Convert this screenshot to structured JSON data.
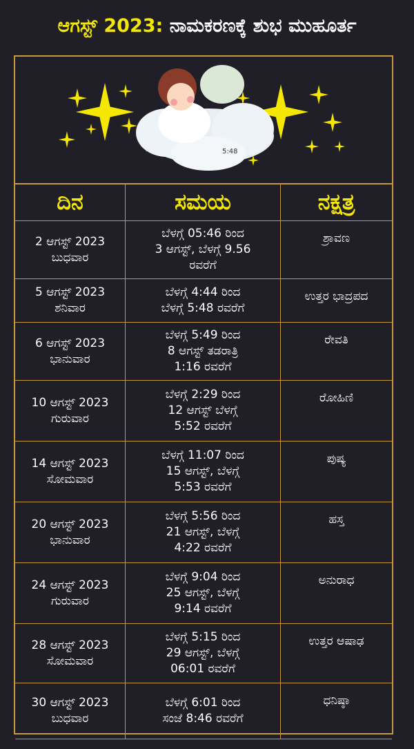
{
  "title": {
    "highlight": "ಆಗಸ್ಟ್ 2023:",
    "rest": " ನಾಮಕರಣಕ್ಕೆ ಶುಭ ಮುಹೂರ್ತ"
  },
  "illustration": {
    "caption": "5:48"
  },
  "table": {
    "headers": [
      "ದಿನ",
      "ಸಮಯ",
      "ನಕ್ಷತ್ರ"
    ],
    "rows": [
      {
        "date": "2 ಆಗಸ್ಟ್ 2023",
        "day": "ಬುಧವಾರ",
        "time": [
          "ಬೆಳಗ್ಗೆ 05:46 ರಿಂದ",
          "3 ಆಗಸ್ಟ್, ಬೆಳಗ್ಗೆ 9.56",
          "ರವರೆಗೆ"
        ],
        "nakshatra": "ಶ್ರಾವಣ"
      },
      {
        "date": "5 ಆಗಸ್ಟ್ 2023",
        "day": "ಶನಿವಾರ",
        "time": [
          "ಬೆಳಗ್ಗೆ 4:44 ರಿಂದ",
          "ಬೆಳಗ್ಗೆ 5:48 ರವರೆಗೆ"
        ],
        "nakshatra": "ಉತ್ತರ ಭಾದ್ರಪದ"
      },
      {
        "date": "6 ಆಗಸ್ಟ್ 2023",
        "day": "ಭಾನುವಾರ",
        "time": [
          "ಬೆಳಗ್ಗೆ 5:49 ರಿಂದ",
          "8 ಆಗಸ್ಟ್ ತಡರಾತ್ರಿ",
          "1:16 ರವರೆಗೆ"
        ],
        "nakshatra": "ರೇವತಿ"
      },
      {
        "date": "10 ಆಗಸ್ಟ್ 2023",
        "day": "ಗುರುವಾರ",
        "time": [
          "ಬೆಳಗ್ಗೆ 2:29 ರಿಂದ",
          "12 ಆಗಸ್ಟ್ ಬೆಳಗ್ಗೆ",
          "5:52 ರವರೆಗೆ"
        ],
        "nakshatra": "ರೋಹಿಣಿ"
      },
      {
        "date": "14 ಆಗಸ್ಟ್ 2023",
        "day": "ಸೋಮವಾರ",
        "time": [
          "ಬೆಳಗ್ಗೆ 11:07 ರಿಂದ",
          "15 ಆಗಸ್ಟ್, ಬೆಳಗ್ಗೆ",
          "5:53 ರವರೆಗೆ"
        ],
        "nakshatra": "ಪುಷ್ಯ"
      },
      {
        "date": "20 ಆಗಸ್ಟ್ 2023",
        "day": "ಭಾನುವಾರ",
        "time": [
          "ಬೆಳಗ್ಗೆ 5:56 ರಿಂದ",
          "21 ಆಗಸ್ಟ್, ಬೆಳಗ್ಗೆ",
          "4:22 ರವರೆಗೆ"
        ],
        "nakshatra": "ಹಸ್ತ"
      },
      {
        "date": "24 ಆಗಸ್ಟ್ 2023",
        "day": "ಗುರುವಾರ",
        "time": [
          "ಬೆಳಗ್ಗೆ 9:04 ರಿಂದ",
          "25 ಆಗಸ್ಟ್, ಬೆಳಗ್ಗೆ",
          "9:14 ರವರೆಗೆ"
        ],
        "nakshatra": "ಅನುರಾಧ"
      },
      {
        "date": "28 ಆಗಸ್ಟ್ 2023",
        "day": "ಸೋಮವಾರ",
        "time": [
          "ಬೆಳಗ್ಗೆ 5:15 ರಿಂದ",
          "29 ಆಗಸ್ಟ್, ಬೆಳಗ್ಗೆ",
          "06:01 ರವರೆಗೆ"
        ],
        "nakshatra": "ಉತ್ತರ ಆಷಾಢ"
      },
      {
        "date": "30 ಆಗಸ್ಟ್ 2023",
        "day": "ಬುಧವಾರ",
        "time": [
          "ಬೆಳಗ್ಗೆ 6:01 ರಿಂದ",
          "ಸಂಜೆ 8:46 ರವರೆಗೆ"
        ],
        "nakshatra": "ಧನಿಷ್ಠಾ"
      }
    ]
  },
  "colors": {
    "background": "#201e26",
    "accent": "#f5e800",
    "border": "#c9973c"
  }
}
